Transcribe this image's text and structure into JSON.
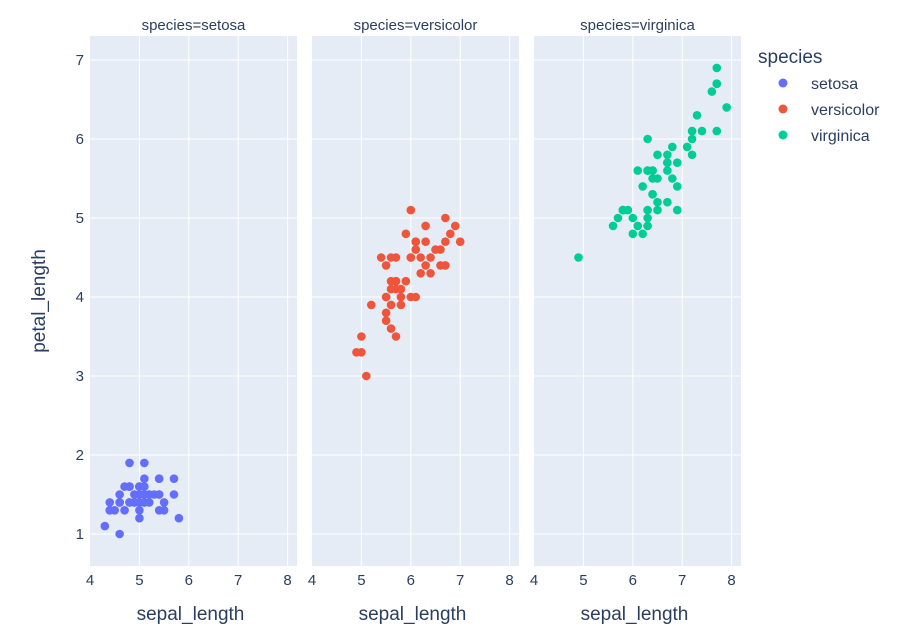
{
  "chart_data": {
    "type": "scatter",
    "facet_label": "species",
    "xlabel": "sepal_length",
    "ylabel": "petal_length",
    "xlim": [
      4,
      8.3
    ],
    "ylim": [
      0.6,
      7.3
    ],
    "xticks": [
      4,
      5,
      6,
      7,
      8
    ],
    "yticks": [
      1,
      2,
      3,
      4,
      5,
      6,
      7
    ],
    "grid": true,
    "legend": {
      "title": "species",
      "placement": "top-right"
    },
    "panels": [
      {
        "title": "species=setosa",
        "name": "setosa",
        "color": "#636efa",
        "x": [
          5.1,
          4.9,
          4.7,
          4.6,
          5.0,
          5.4,
          4.6,
          5.0,
          4.4,
          4.9,
          5.4,
          4.8,
          4.8,
          4.3,
          5.8,
          5.7,
          5.4,
          5.1,
          5.7,
          5.1,
          5.4,
          5.1,
          4.6,
          5.1,
          4.8,
          5.0,
          5.0,
          5.2,
          5.2,
          4.7,
          4.8,
          5.4,
          5.2,
          5.5,
          4.9,
          5.0,
          5.5,
          4.9,
          4.4,
          5.1,
          5.0,
          4.5,
          4.4,
          5.0,
          5.1,
          4.8,
          5.1,
          4.6,
          5.3,
          5.0
        ],
        "y": [
          1.4,
          1.4,
          1.3,
          1.5,
          1.4,
          1.7,
          1.4,
          1.5,
          1.4,
          1.5,
          1.5,
          1.6,
          1.4,
          1.1,
          1.2,
          1.5,
          1.3,
          1.4,
          1.7,
          1.5,
          1.7,
          1.5,
          1.0,
          1.7,
          1.9,
          1.6,
          1.6,
          1.5,
          1.4,
          1.6,
          1.6,
          1.5,
          1.5,
          1.4,
          1.5,
          1.2,
          1.3,
          1.4,
          1.3,
          1.5,
          1.3,
          1.3,
          1.3,
          1.6,
          1.9,
          1.4,
          1.6,
          1.4,
          1.5,
          1.4
        ]
      },
      {
        "title": "species=versicolor",
        "name": "versicolor",
        "color": "#ef553b",
        "x": [
          7.0,
          6.4,
          6.9,
          5.5,
          6.5,
          5.7,
          6.3,
          4.9,
          6.6,
          5.2,
          5.0,
          5.9,
          6.0,
          6.1,
          5.6,
          6.7,
          5.6,
          5.8,
          6.2,
          5.6,
          5.9,
          6.1,
          6.3,
          6.1,
          6.4,
          6.6,
          6.8,
          6.7,
          6.0,
          5.7,
          5.5,
          5.5,
          5.8,
          6.0,
          5.4,
          6.0,
          6.7,
          6.3,
          5.6,
          5.5,
          5.5,
          6.1,
          5.8,
          5.0,
          5.6,
          5.7,
          5.7,
          6.2,
          5.1,
          5.7
        ],
        "y": [
          4.7,
          4.5,
          4.9,
          4.0,
          4.6,
          4.5,
          4.7,
          3.3,
          4.6,
          3.9,
          3.5,
          4.2,
          4.0,
          4.7,
          3.6,
          4.4,
          4.5,
          4.1,
          4.5,
          3.9,
          4.8,
          4.0,
          4.9,
          4.7,
          4.3,
          4.4,
          4.8,
          5.0,
          4.5,
          3.5,
          3.8,
          3.7,
          3.9,
          5.1,
          4.5,
          4.5,
          4.7,
          4.4,
          4.1,
          4.0,
          4.4,
          4.6,
          4.0,
          3.3,
          4.2,
          4.2,
          4.2,
          4.3,
          3.0,
          4.1
        ]
      },
      {
        "title": "species=virginica",
        "name": "virginica",
        "color": "#00cc96",
        "x": [
          6.3,
          5.8,
          7.1,
          6.3,
          6.5,
          7.6,
          4.9,
          7.3,
          6.7,
          7.2,
          6.5,
          6.4,
          6.8,
          5.7,
          5.8,
          6.4,
          6.5,
          7.7,
          7.7,
          6.0,
          6.9,
          5.6,
          7.7,
          6.3,
          6.7,
          7.2,
          6.2,
          6.1,
          6.4,
          7.2,
          7.4,
          7.9,
          6.4,
          6.3,
          6.1,
          7.7,
          6.3,
          6.4,
          6.0,
          6.9,
          6.7,
          6.9,
          5.8,
          6.8,
          6.7,
          6.7,
          6.3,
          6.5,
          6.2,
          5.9
        ],
        "y": [
          6.0,
          5.1,
          5.9,
          5.6,
          5.8,
          6.6,
          4.5,
          6.3,
          5.8,
          6.1,
          5.1,
          5.3,
          5.5,
          5.0,
          5.1,
          5.3,
          5.5,
          6.7,
          6.9,
          5.0,
          5.7,
          4.9,
          6.7,
          4.9,
          5.7,
          6.0,
          4.8,
          4.9,
          5.6,
          5.8,
          6.1,
          6.4,
          5.6,
          5.1,
          5.6,
          6.1,
          5.6,
          5.5,
          4.8,
          5.4,
          5.6,
          5.1,
          5.1,
          5.9,
          5.7,
          5.2,
          5.0,
          5.2,
          5.4,
          5.1
        ]
      }
    ]
  }
}
